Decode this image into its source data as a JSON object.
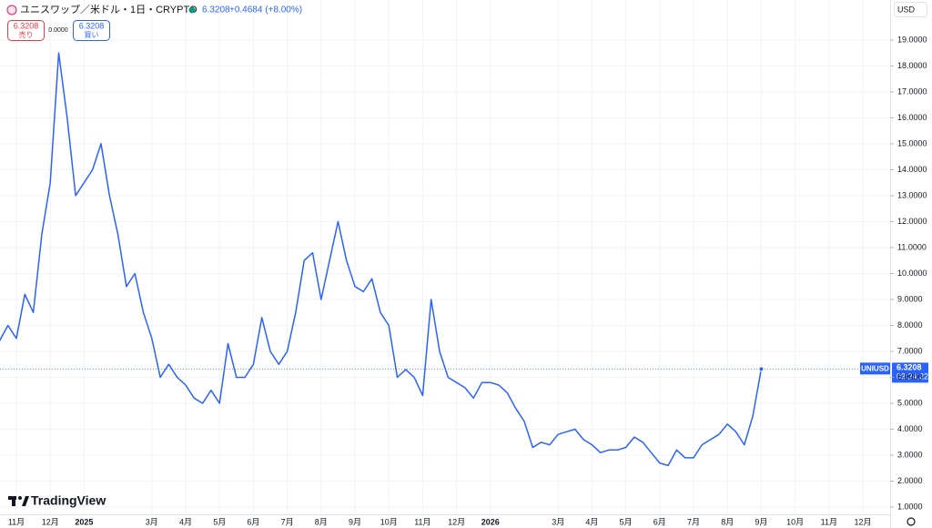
{
  "header": {
    "title": "ユニスワップ／米ドル・1日・CRYPTO",
    "price": "6.3208",
    "change": "+0.4684 (+8.00%)",
    "sell_price": "6.3208",
    "sell_label": "売り",
    "spread": "0.0000",
    "buy_price": "6.3208",
    "buy_label": "買い",
    "currency": "USD",
    "brand": "TradingView"
  },
  "chart_data": {
    "type": "line",
    "symbol": "UNIUSD",
    "countdown": "03:24:22",
    "categories": [
      null,
      null,
      "11月",
      null,
      null,
      null,
      "12月",
      null,
      null,
      null,
      "2025",
      null,
      null,
      null,
      null,
      null,
      null,
      null,
      "3月",
      null,
      null,
      null,
      "4月",
      null,
      null,
      null,
      "5月",
      null,
      null,
      null,
      "6月",
      null,
      null,
      null,
      "7月",
      null,
      null,
      null,
      "8月",
      null,
      null,
      null,
      "9月",
      null,
      null,
      null,
      "10月",
      null,
      null,
      null,
      "11月",
      null,
      null,
      null,
      "12月",
      null,
      null,
      null,
      "2026",
      null,
      null,
      null,
      null,
      null,
      null,
      null,
      "3月",
      null,
      null,
      null,
      "4月",
      null,
      null,
      null,
      "5月",
      null,
      null,
      null,
      "6月",
      null,
      null,
      null,
      "7月",
      null,
      null,
      null,
      "8月",
      null,
      null,
      null,
      "9月",
      null,
      null,
      null,
      "10月",
      null,
      null,
      null,
      "11月",
      null,
      null,
      null,
      "12月"
    ],
    "series": [
      {
        "name": "UNIUSD",
        "color": "#2962ff",
        "values": [
          7.4,
          8.0,
          7.5,
          9.2,
          8.5,
          11.5,
          13.5,
          18.5,
          16.0,
          13.0,
          13.5,
          14.0,
          15.0,
          13.0,
          11.5,
          9.5,
          10.0,
          8.5,
          7.5,
          6.0,
          6.5,
          6.0,
          5.7,
          5.2,
          5.0,
          5.5,
          5.0,
          7.3,
          6.0,
          6.0,
          6.5,
          8.3,
          7.0,
          6.5,
          7.0,
          8.5,
          10.5,
          10.8,
          9.0,
          10.5,
          12.0,
          10.5,
          9.5,
          9.3,
          9.8,
          8.5,
          8.0,
          6.0,
          6.3,
          6.0,
          5.3,
          9.0,
          7.0,
          6.0,
          5.8,
          5.6,
          5.2,
          5.8,
          5.8,
          5.7,
          5.4,
          4.8,
          4.3,
          3.3,
          3.5,
          3.4,
          3.8,
          3.9,
          4.0,
          3.6,
          3.4,
          3.1,
          3.2,
          3.2,
          3.3,
          3.7,
          3.5,
          3.1,
          2.7,
          2.6,
          3.2,
          2.9,
          2.9,
          3.4,
          3.6,
          3.8,
          4.2,
          3.9,
          3.4,
          4.5,
          6.3208,
          null,
          null,
          null,
          null,
          null,
          null,
          null,
          null,
          null,
          null,
          null,
          null
        ]
      }
    ],
    "ylim": [
      0.72,
      20.54
    ],
    "yticks": [
      {
        "value": 1,
        "label": "1.0000"
      },
      {
        "value": 2,
        "label": "2.0000"
      },
      {
        "value": 3,
        "label": "3.0000"
      },
      {
        "value": 4,
        "label": "4.0000"
      },
      {
        "value": 5,
        "label": "5.0000"
      },
      {
        "value": 6,
        "label": "6.0000"
      },
      {
        "value": 7,
        "label": "7.0000"
      },
      {
        "value": 8,
        "label": "8.0000"
      },
      {
        "value": 9,
        "label": "9.0000"
      },
      {
        "value": 10,
        "label": "10.0000"
      },
      {
        "value": 11,
        "label": "11.0000"
      },
      {
        "value": 12,
        "label": "12.0000"
      },
      {
        "value": 13,
        "label": "13.0000"
      },
      {
        "value": 14,
        "label": "14.0000"
      },
      {
        "value": 15,
        "label": "15.0000"
      },
      {
        "value": 16,
        "label": "16.0000"
      },
      {
        "value": 17,
        "label": "17.0000"
      },
      {
        "value": 18,
        "label": "18.0000"
      },
      {
        "value": 19,
        "label": "19.0000"
      }
    ],
    "grid": true
  }
}
